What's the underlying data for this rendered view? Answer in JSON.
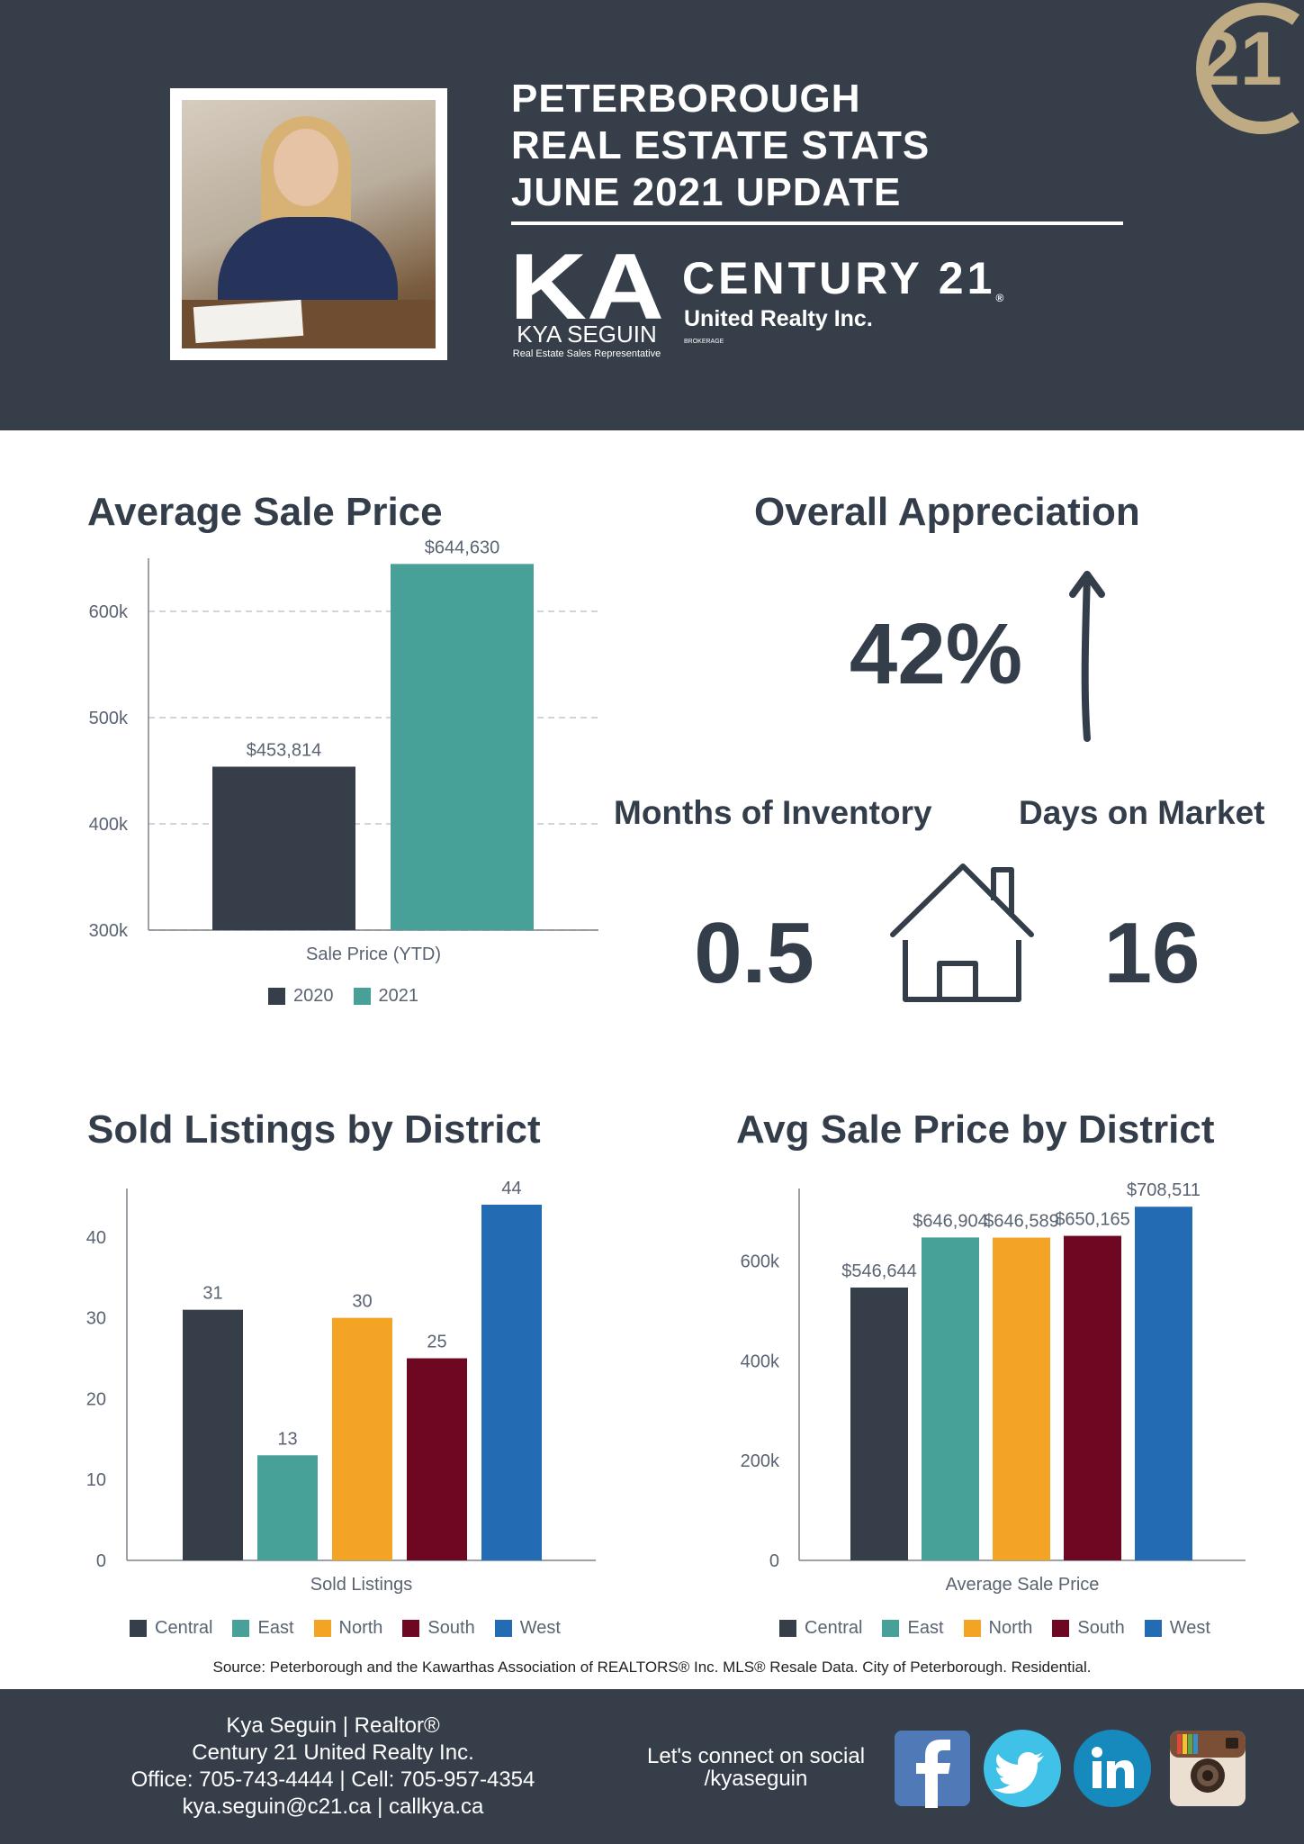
{
  "header": {
    "title_lines": [
      "PETERBOROUGH",
      "REAL ESTATE STATS",
      "JUNE 2021 UPDATE"
    ],
    "logo_letters": "KA",
    "agent_name": "KYA SEGUIN",
    "agent_role": "Real Estate Sales Representative",
    "brand": "CENTURY 21",
    "brand_mark": "®",
    "brand_sub": "United Realty Inc.",
    "brokerage": "BROKERAGE",
    "seal_text": "21"
  },
  "avg_sale_price": {
    "title": "Average Sale Price"
  },
  "appreciation": {
    "title": "Overall Appreciation",
    "value": "42%",
    "icon": "up-arrow-icon"
  },
  "inventory": {
    "label": "Months of Inventory",
    "value": "0.5"
  },
  "days_on_market": {
    "label": "Days on Market",
    "value": "16"
  },
  "house_icon": "house-icon",
  "sold_listings": {
    "title": "Sold Listings by District"
  },
  "avg_price_district": {
    "title": "Avg Sale Price by District"
  },
  "chart_data": [
    {
      "type": "bar",
      "title": "Average Sale Price",
      "xlabel": "Sale Price (YTD)",
      "ylabel": "",
      "categories": [
        "Sale Price (YTD)"
      ],
      "series": [
        {
          "name": "2020",
          "values": [
            453814
          ],
          "labels": [
            "$453,814"
          ],
          "color": "#363e49"
        },
        {
          "name": "2021",
          "values": [
            644630
          ],
          "labels": [
            "$644,630"
          ],
          "color": "#48a199"
        }
      ],
      "ylim": [
        300000,
        650000
      ],
      "yticks": [
        300000,
        400000,
        500000,
        600000
      ],
      "ytick_labels": [
        "300k",
        "400k",
        "500k",
        "600k"
      ],
      "grid": true,
      "legend": "bottom"
    },
    {
      "type": "bar",
      "title": "Sold Listings by District",
      "xlabel": "Sold Listings",
      "ylabel": "",
      "categories": [
        "Sold Listings"
      ],
      "series": [
        {
          "name": "Central",
          "values": [
            31
          ],
          "labels": [
            "31"
          ],
          "color": "#363e49"
        },
        {
          "name": "East",
          "values": [
            13
          ],
          "labels": [
            "13"
          ],
          "color": "#48a199"
        },
        {
          "name": "North",
          "values": [
            30
          ],
          "labels": [
            "30"
          ],
          "color": "#f4a425"
        },
        {
          "name": "South",
          "values": [
            25
          ],
          "labels": [
            "25"
          ],
          "color": "#6e0822"
        },
        {
          "name": "West",
          "values": [
            44
          ],
          "labels": [
            "44"
          ],
          "color": "#236bb2"
        }
      ],
      "ylim": [
        0,
        46
      ],
      "yticks": [
        0,
        10,
        20,
        30,
        40
      ],
      "ytick_labels": [
        "0",
        "10",
        "20",
        "30",
        "40"
      ],
      "grid": false,
      "legend": "bottom"
    },
    {
      "type": "bar",
      "title": "Avg Sale Price by District",
      "xlabel": "Average Sale Price",
      "ylabel": "",
      "categories": [
        "Average Sale Price"
      ],
      "series": [
        {
          "name": "Central",
          "values": [
            546644
          ],
          "labels": [
            "$546,644"
          ],
          "color": "#363e49"
        },
        {
          "name": "East",
          "values": [
            646904
          ],
          "labels": [
            "$646,904"
          ],
          "color": "#48a199"
        },
        {
          "name": "North",
          "values": [
            646589
          ],
          "labels": [
            "$646,589"
          ],
          "color": "#f4a425"
        },
        {
          "name": "South",
          "values": [
            650165
          ],
          "labels": [
            "$650,165"
          ],
          "color": "#6e0822"
        },
        {
          "name": "West",
          "values": [
            708511
          ],
          "labels": [
            "$708,511"
          ],
          "color": "#236bb2"
        }
      ],
      "ylim": [
        0,
        745000
      ],
      "yticks": [
        0,
        200000,
        400000,
        600000
      ],
      "ytick_labels": [
        "0",
        "200k",
        "400k",
        "600k"
      ],
      "grid": false,
      "legend": "bottom"
    }
  ],
  "source": "Source: Peterborough and the Kawarthas Association of REALTORS® Inc. MLS® Resale Data. City of Peterborough. Residential.",
  "footer": {
    "contact_lines": [
      "Kya Seguin | Realtor®",
      "Century 21 United Realty Inc.",
      "Office: 705-743-4444 | Cell: 705-957-4354",
      "kya.seguin@c21.ca | callkya.ca"
    ],
    "connect_lines": [
      "Let's connect on social",
      "/kyaseguin"
    ],
    "social_icons": [
      "facebook-icon",
      "twitter-icon",
      "linkedin-icon",
      "instagram-icon"
    ]
  },
  "colors": {
    "navy": "#363e49",
    "teal": "#48a199",
    "gold": "#f4a425",
    "maroon": "#6e0822",
    "blue": "#236bb2",
    "c21_gold": "#beab84"
  }
}
